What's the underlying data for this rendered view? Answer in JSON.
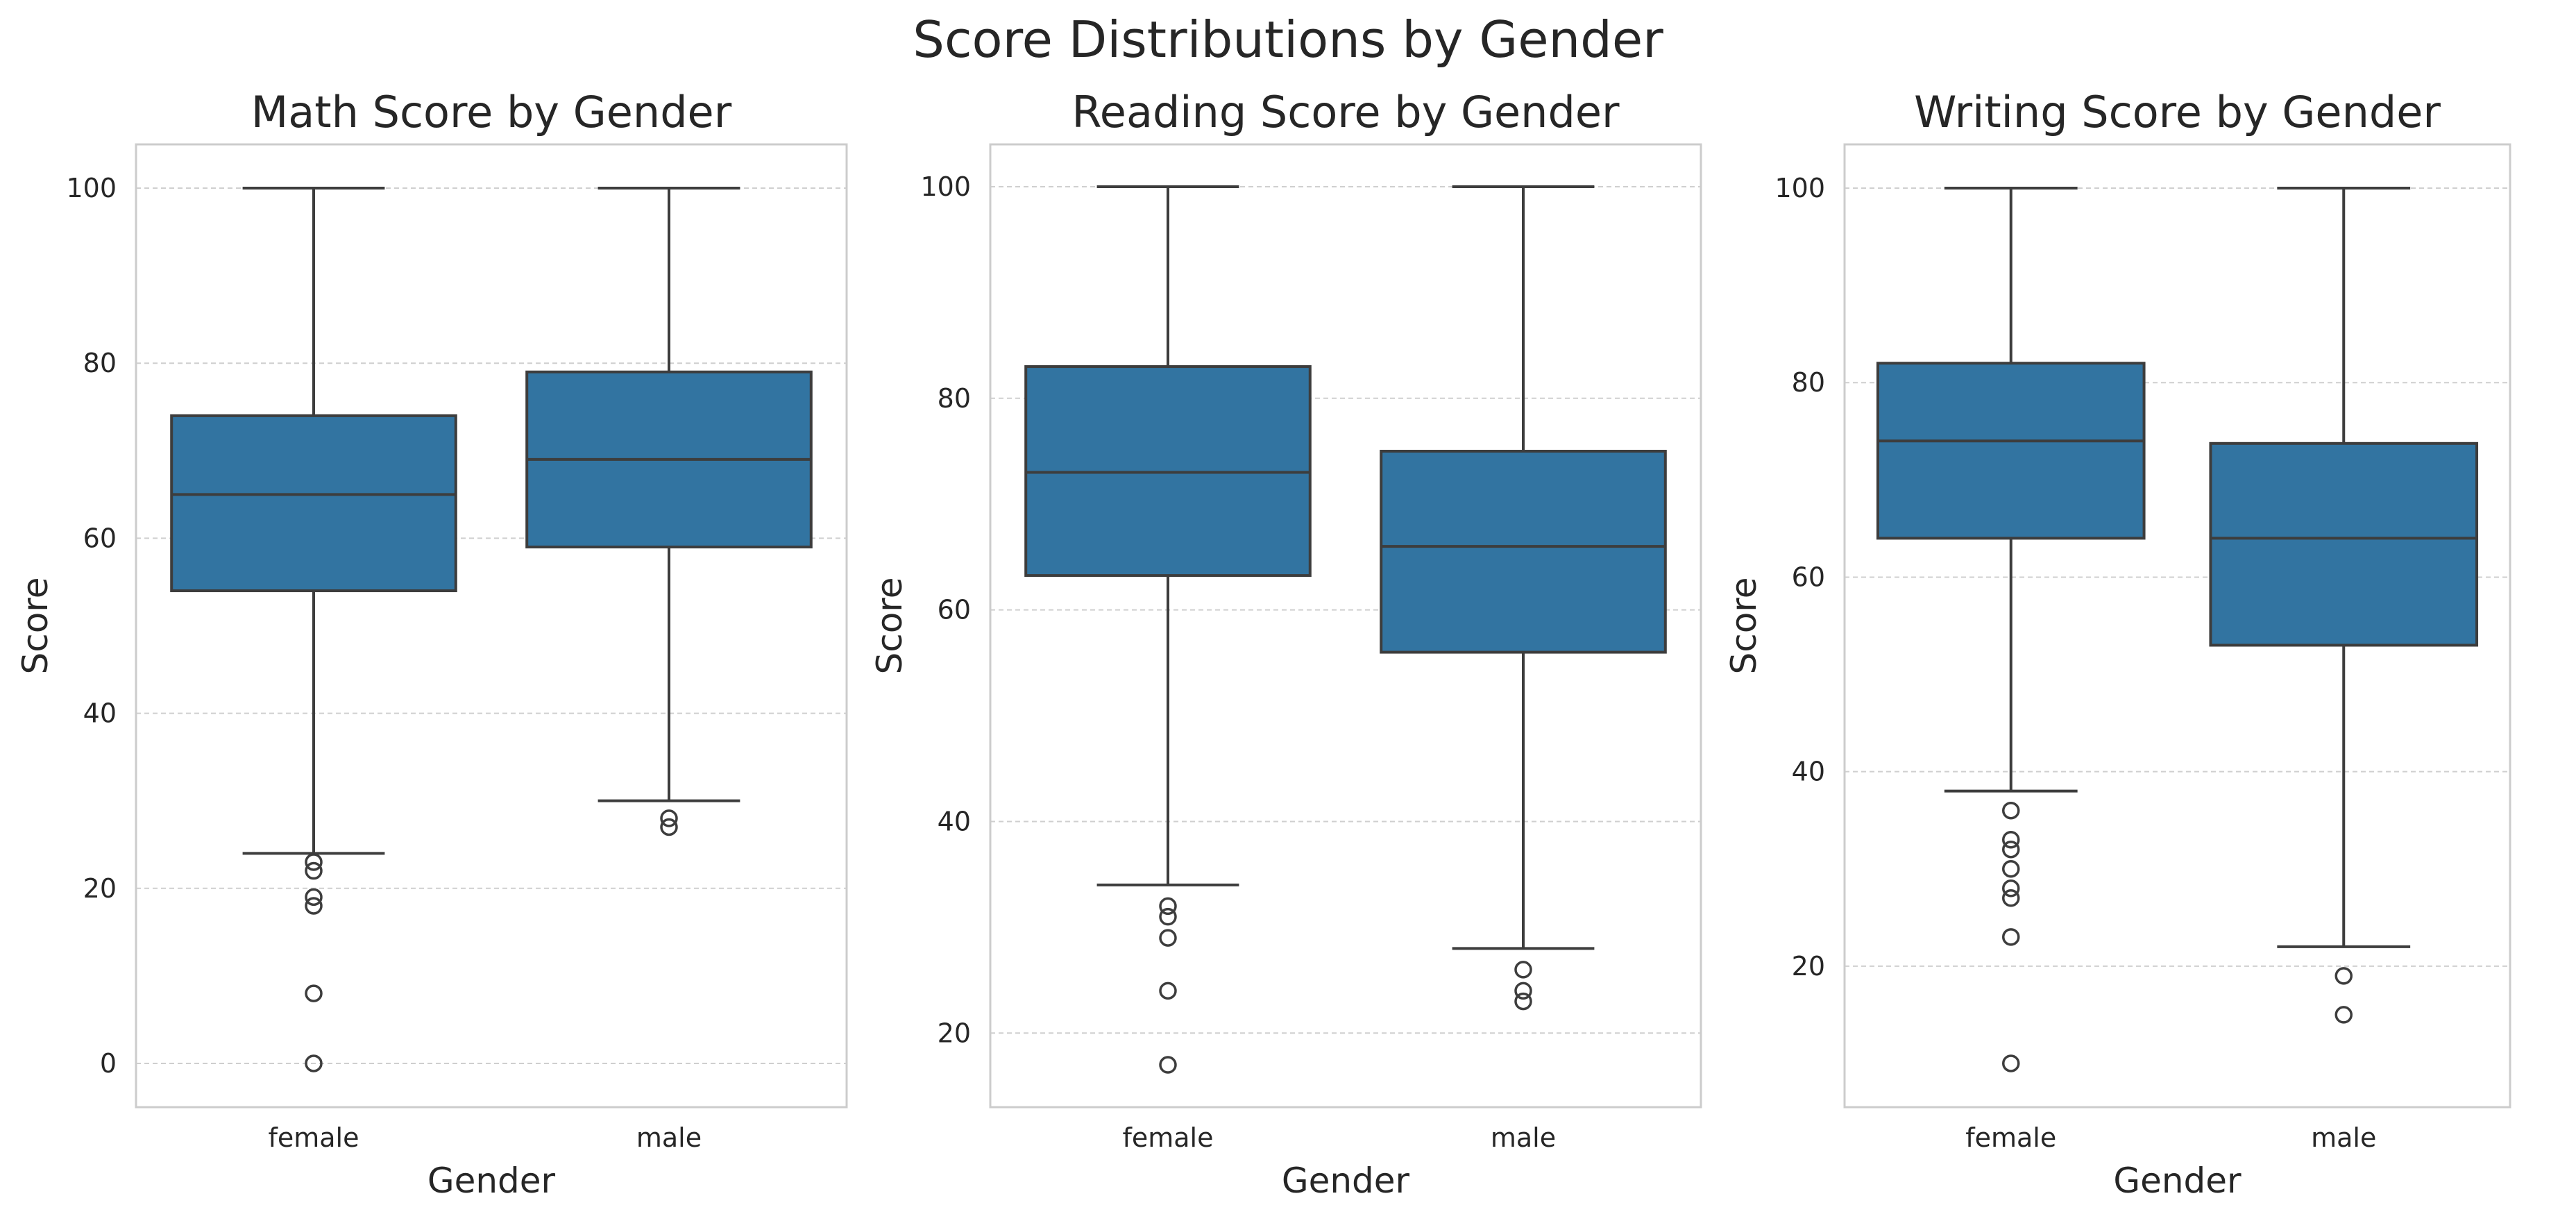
{
  "figure": {
    "title": "Score Distributions by Gender",
    "box_color": "#3274a1",
    "line_color": "#3d3d3d"
  },
  "chart_data": [
    {
      "type": "box",
      "title": "Math Score by Gender",
      "xlabel": "Gender",
      "ylabel": "Score",
      "ylim": [
        -5,
        105
      ],
      "yticks": [
        0,
        20,
        40,
        60,
        80,
        100
      ],
      "grid": true,
      "categories": [
        "female",
        "male"
      ],
      "boxes": [
        {
          "category": "female",
          "whisker_low": 24,
          "q1": 54,
          "median": 65,
          "q3": 74,
          "whisker_high": 100,
          "outliers": [
            23,
            22,
            19,
            18,
            8,
            0
          ]
        },
        {
          "category": "male",
          "whisker_low": 30,
          "q1": 59,
          "median": 69,
          "q3": 79,
          "whisker_high": 100,
          "outliers": [
            28,
            27
          ]
        }
      ]
    },
    {
      "type": "box",
      "title": "Reading Score by Gender",
      "xlabel": "Gender",
      "ylabel": "Score",
      "ylim": [
        13,
        104
      ],
      "yticks": [
        20,
        40,
        60,
        80,
        100
      ],
      "grid": true,
      "categories": [
        "female",
        "male"
      ],
      "boxes": [
        {
          "category": "female",
          "whisker_low": 34,
          "q1": 63.25,
          "median": 73,
          "q3": 83,
          "whisker_high": 100,
          "outliers": [
            32,
            31,
            29,
            24,
            17
          ]
        },
        {
          "category": "male",
          "whisker_low": 28,
          "q1": 56,
          "median": 66,
          "q3": 75,
          "whisker_high": 100,
          "outliers": [
            26,
            24,
            23
          ]
        }
      ]
    },
    {
      "type": "box",
      "title": "Writing Score by Gender",
      "xlabel": "Gender",
      "ylabel": "Score",
      "ylim": [
        5.5,
        104.5
      ],
      "yticks": [
        20,
        40,
        60,
        80,
        100
      ],
      "grid": true,
      "categories": [
        "female",
        "male"
      ],
      "boxes": [
        {
          "category": "female",
          "whisker_low": 38,
          "q1": 64,
          "median": 74,
          "q3": 82,
          "whisker_high": 100,
          "outliers": [
            36,
            33,
            32,
            30,
            28,
            27,
            23,
            10
          ]
        },
        {
          "category": "male",
          "whisker_low": 22,
          "q1": 53,
          "median": 64,
          "q3": 73.75,
          "whisker_high": 100,
          "outliers": [
            19,
            15
          ]
        }
      ]
    }
  ]
}
